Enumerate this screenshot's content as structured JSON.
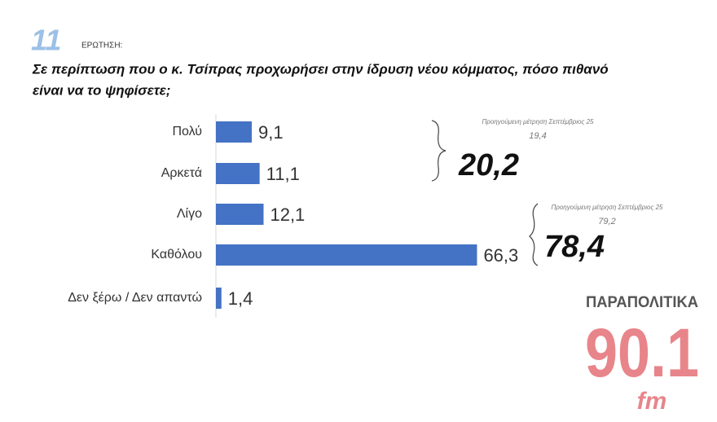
{
  "header": {
    "number": "11",
    "label": "ΕΡΩΤΗΣΗ:"
  },
  "chart_data": {
    "type": "hbar",
    "title": [
      "Σε περίπτωση που ο κ. Τσίπρας προχωρήσει στην ίδρυση νέου κόμματος, πόσο πιθανό",
      "είναι να το ψηφίσετε;"
    ],
    "categories": [
      "Πολύ",
      "Αρκετά",
      "Λίγο",
      "Καθόλου",
      "Δεν ξέρω / Δεν απαντώ"
    ],
    "values": [
      9.1,
      11.1,
      12.1,
      66.3,
      1.4
    ],
    "value_labels": [
      "9,1",
      "11,1",
      "12,1",
      "66,3",
      "1,4"
    ],
    "color": "#4472c4",
    "xlim": [
      0,
      90
    ],
    "annotations": [
      {
        "note": "Προηγούμενη μέτρηση Σεπτέμβριος 25",
        "previous": "19,4",
        "total": "20,2"
      },
      {
        "note": "Προηγούμενη μέτρηση Σεπτέμβριος 25",
        "previous": "79,2",
        "total": "78,4"
      }
    ]
  },
  "logo": {
    "brand": "ΠΑΡΑΠΟΛΙΤΙΚΑ",
    "frequency": "90.1",
    "band": "fm"
  }
}
